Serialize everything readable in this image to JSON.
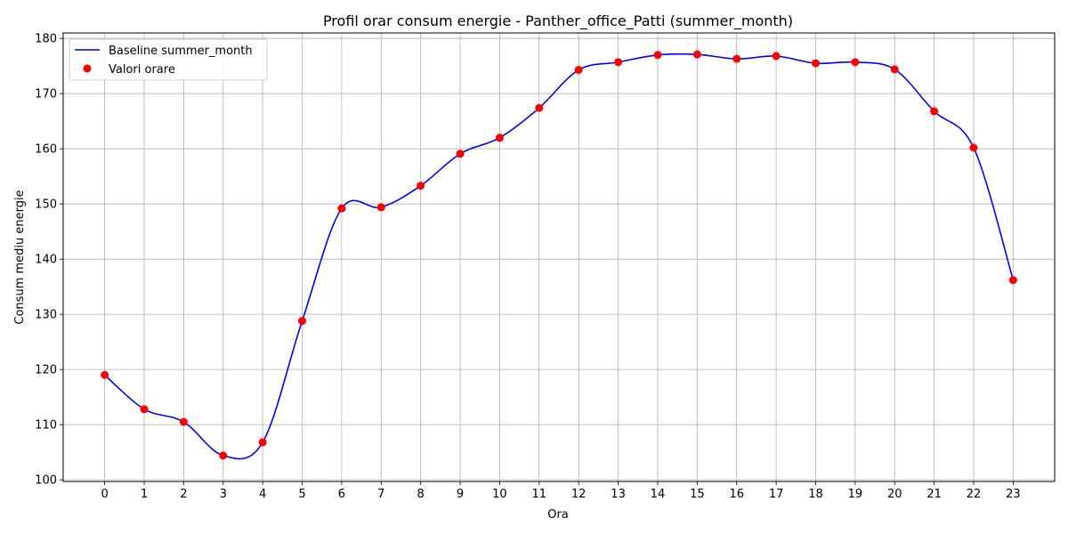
{
  "chart_data": {
    "type": "line",
    "title": "Profil orar consum energie - Panther_office_Patti (summer_month)",
    "xlabel": "Ora",
    "ylabel": "Consum mediu energie",
    "x": [
      0,
      1,
      2,
      3,
      4,
      5,
      6,
      7,
      8,
      9,
      10,
      11,
      12,
      13,
      14,
      15,
      16,
      17,
      18,
      19,
      20,
      21,
      22,
      23
    ],
    "xlim": [
      -1.05,
      24.05
    ],
    "ylim": [
      99.7,
      181.0
    ],
    "yticks": [
      100,
      110,
      120,
      130,
      140,
      150,
      160,
      170,
      180
    ],
    "grid": true,
    "legend_position": "top-left",
    "series": [
      {
        "name": "Baseline summer_month",
        "kind": "line",
        "color": "#0000ff",
        "values": [
          119.0,
          112.8,
          110.5,
          104.4,
          106.8,
          128.8,
          149.2,
          149.4,
          153.3,
          159.1,
          162.0,
          167.4,
          174.3,
          175.7,
          177.0,
          177.1,
          176.3,
          176.8,
          175.5,
          175.7,
          174.4,
          166.8,
          160.2,
          136.2
        ]
      },
      {
        "name": "Valori orare",
        "kind": "scatter",
        "color": "#ff0000",
        "values": [
          119.0,
          112.8,
          110.5,
          104.4,
          106.8,
          128.8,
          149.2,
          149.4,
          153.3,
          159.1,
          162.0,
          167.4,
          174.3,
          175.7,
          177.0,
          177.1,
          176.3,
          176.8,
          175.5,
          175.7,
          174.4,
          166.8,
          160.2,
          136.2
        ]
      }
    ]
  }
}
